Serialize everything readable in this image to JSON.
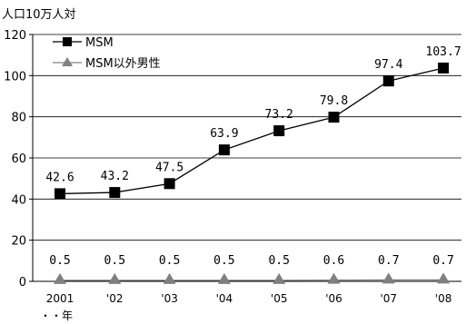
{
  "chart_data": {
    "type": "line",
    "ylabel": "人口10万人対",
    "x_title": "・・年",
    "categories": [
      "2001",
      "'02",
      "'03",
      "'04",
      "'05",
      "'06",
      "'07",
      "'08"
    ],
    "ylim": [
      0,
      120
    ],
    "y_ticks": [
      0,
      20,
      40,
      60,
      80,
      100,
      120
    ],
    "grid": true,
    "legend_position": "top-left",
    "series": [
      {
        "name": "MSM",
        "marker": "square",
        "color": "#000000",
        "values": [
          42.6,
          43.2,
          47.5,
          63.9,
          73.2,
          79.8,
          97.4,
          103.7
        ],
        "labels": [
          "42.6",
          "43.2",
          "47.5",
          "63.9",
          "73.2",
          "79.8",
          "97.4",
          "103.7"
        ]
      },
      {
        "name": "MSM以外男性",
        "marker": "triangle",
        "color": "#808080",
        "values": [
          0.5,
          0.5,
          0.5,
          0.5,
          0.5,
          0.6,
          0.7,
          0.7
        ],
        "labels": [
          "0.5",
          "0.5",
          "0.5",
          "0.5",
          "0.5",
          "0.6",
          "0.7",
          "0.7"
        ]
      }
    ]
  }
}
